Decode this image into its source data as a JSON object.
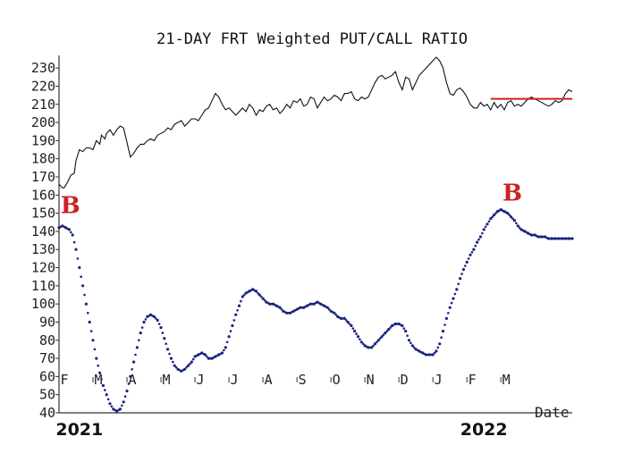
{
  "chart_data": {
    "type": "line",
    "title": "21-DAY FRT Weighted PUT/CALL RATIO",
    "xlabel": "Date",
    "ylabel": "",
    "ylim": [
      40,
      235
    ],
    "y_ticks": [
      40,
      50,
      60,
      70,
      80,
      90,
      100,
      110,
      120,
      130,
      140,
      150,
      160,
      170,
      180,
      190,
      200,
      210,
      220,
      230
    ],
    "x_tick_labels": [
      "F",
      "M",
      "A",
      "M",
      "J",
      "J",
      "A",
      "S",
      "O",
      "N",
      "D",
      "J",
      "F",
      "M"
    ],
    "year_labels": [
      "2021",
      "2022"
    ],
    "grid": false,
    "colors": {
      "price": "#111111",
      "ratio": "#1a237e",
      "marker": "#cc2222",
      "level": "#cc2222"
    },
    "series": [
      {
        "style": "line",
        "x": [
          0,
          1,
          2,
          3,
          5,
          7,
          9,
          10,
          12,
          14,
          16,
          18,
          20,
          22,
          24,
          25,
          27,
          28,
          30,
          32,
          34,
          36,
          38,
          40,
          42,
          44,
          46,
          48,
          50,
          52,
          54,
          56,
          58,
          60,
          62,
          64,
          66,
          68,
          70,
          72,
          74,
          76,
          78,
          80,
          82,
          84,
          86,
          88,
          90,
          92,
          94,
          96,
          98,
          100,
          102,
          104,
          106,
          108,
          110,
          112,
          114,
          116,
          118,
          120,
          122,
          124,
          126,
          128,
          130,
          132,
          134,
          136,
          138,
          140,
          142,
          144,
          146,
          148,
          150,
          152,
          154,
          156,
          158,
          160,
          162,
          164,
          166,
          168,
          170,
          172,
          174,
          176,
          178,
          180,
          182,
          184,
          186,
          188,
          190,
          192,
          194,
          196,
          198,
          200,
          202,
          204,
          206,
          208,
          210,
          212,
          214,
          216,
          218,
          220,
          222,
          224,
          226,
          228,
          230,
          232,
          234,
          236,
          238,
          240,
          242,
          244,
          246,
          248,
          250,
          252,
          254,
          256,
          258,
          260,
          262,
          264,
          266,
          268,
          270,
          272,
          274,
          276,
          278,
          280,
          282,
          284,
          286,
          288,
          290,
          292,
          294,
          296,
          298,
          300,
          302
        ],
        "values": [
          166,
          165,
          164,
          164,
          167,
          171,
          172,
          179,
          185,
          184,
          186,
          186,
          185,
          190,
          188,
          193,
          191,
          194,
          196,
          193,
          196,
          198,
          197,
          189,
          181,
          183,
          186,
          188,
          188,
          190,
          191,
          190,
          193,
          194,
          195,
          197,
          196,
          199,
          200,
          201,
          198,
          200,
          202,
          202,
          201,
          204,
          207,
          208,
          212,
          216,
          214,
          210,
          207,
          208,
          206,
          204,
          206,
          208,
          206,
          210,
          208,
          204,
          207,
          206,
          209,
          210,
          207,
          208,
          205,
          207,
          210,
          208,
          212,
          211,
          213,
          209,
          210,
          214,
          213,
          208,
          211,
          214,
          212,
          213,
          215,
          214,
          212,
          216,
          216,
          217,
          213,
          212,
          214,
          213,
          214,
          218,
          222,
          225,
          226,
          224,
          225,
          226,
          228,
          222,
          218,
          225,
          224,
          218,
          222,
          226,
          228,
          230,
          232,
          234,
          236,
          234,
          230,
          222,
          216,
          215,
          218,
          219,
          217,
          214,
          210,
          208,
          208,
          211,
          209,
          210,
          207,
          211,
          208,
          210,
          207,
          211,
          212,
          209,
          210,
          209,
          211,
          213,
          214,
          213,
          212,
          211,
          210,
          209,
          210,
          212,
          211,
          212,
          216,
          218,
          217
        ]
      },
      {
        "style": "dots",
        "x": [
          0,
          2,
          4,
          6,
          8,
          10,
          12,
          14,
          16,
          18,
          20,
          22,
          24,
          26,
          28,
          30,
          32,
          34,
          36,
          38,
          40,
          42,
          44,
          46,
          48,
          50,
          52,
          54,
          56,
          58,
          60,
          62,
          64,
          66,
          68,
          70,
          72,
          74,
          76,
          78,
          80,
          82,
          84,
          86,
          88,
          90,
          92,
          94,
          96,
          98,
          100,
          102,
          104,
          106,
          108,
          110,
          112,
          114,
          116,
          118,
          120,
          122,
          124,
          126,
          128,
          130,
          132,
          134,
          136,
          138,
          140,
          142,
          144,
          146,
          148,
          150,
          152,
          154,
          156,
          158,
          160,
          162,
          164,
          166,
          168,
          170,
          172,
          174,
          176,
          178,
          180,
          182,
          184,
          186,
          188,
          190,
          192,
          194,
          196,
          198,
          200,
          202,
          204,
          206,
          208,
          210,
          212,
          214,
          216,
          218,
          220,
          222,
          224,
          226,
          228,
          230,
          232,
          234,
          236,
          238,
          240,
          242,
          244,
          246,
          248,
          250,
          252,
          254,
          256,
          258,
          260,
          262,
          264,
          266,
          268,
          270,
          272,
          274,
          276,
          278,
          280,
          282,
          284,
          286,
          288,
          290,
          292,
          294,
          296,
          298,
          300,
          302
        ],
        "values": [
          142,
          143,
          142,
          141,
          138,
          130,
          120,
          110,
          100,
          90,
          80,
          70,
          62,
          55,
          50,
          45,
          42,
          41,
          42,
          46,
          52,
          60,
          68,
          76,
          84,
          90,
          93,
          94,
          93,
          91,
          87,
          81,
          75,
          70,
          66,
          64,
          63,
          64,
          66,
          68,
          71,
          72,
          73,
          72,
          70,
          70,
          71,
          72,
          73,
          76,
          82,
          88,
          94,
          99,
          104,
          106,
          107,
          108,
          107,
          105,
          103,
          101,
          100,
          100,
          99,
          98,
          96,
          95,
          95,
          96,
          97,
          98,
          98,
          99,
          100,
          100,
          101,
          100,
          99,
          98,
          96,
          95,
          93,
          92,
          92,
          90,
          88,
          85,
          82,
          79,
          77,
          76,
          76,
          78,
          80,
          82,
          84,
          86,
          88,
          89,
          89,
          88,
          85,
          80,
          77,
          75,
          74,
          73,
          72,
          72,
          72,
          74,
          78,
          85,
          92,
          98,
          103,
          108,
          114,
          119,
          123,
          127,
          130,
          134,
          137,
          141,
          144,
          147,
          149,
          151,
          152,
          151,
          150,
          148,
          146,
          143,
          141,
          140,
          139,
          138,
          138,
          137,
          137,
          137,
          136,
          136,
          136,
          136,
          136,
          136,
          136,
          136
        ]
      },
      {
        "style": "level",
        "x": [
          254,
          302
        ],
        "values": [
          213,
          213
        ]
      }
    ],
    "annotations": [
      {
        "text": "B",
        "x": 2,
        "y": 150
      },
      {
        "text": "B",
        "x": 262,
        "y": 157
      }
    ],
    "x_tick_positions": [
      0,
      20,
      40,
      60,
      80,
      100,
      120,
      140,
      160,
      180,
      200,
      220,
      240,
      260
    ],
    "year_positions": [
      12,
      250
    ]
  }
}
